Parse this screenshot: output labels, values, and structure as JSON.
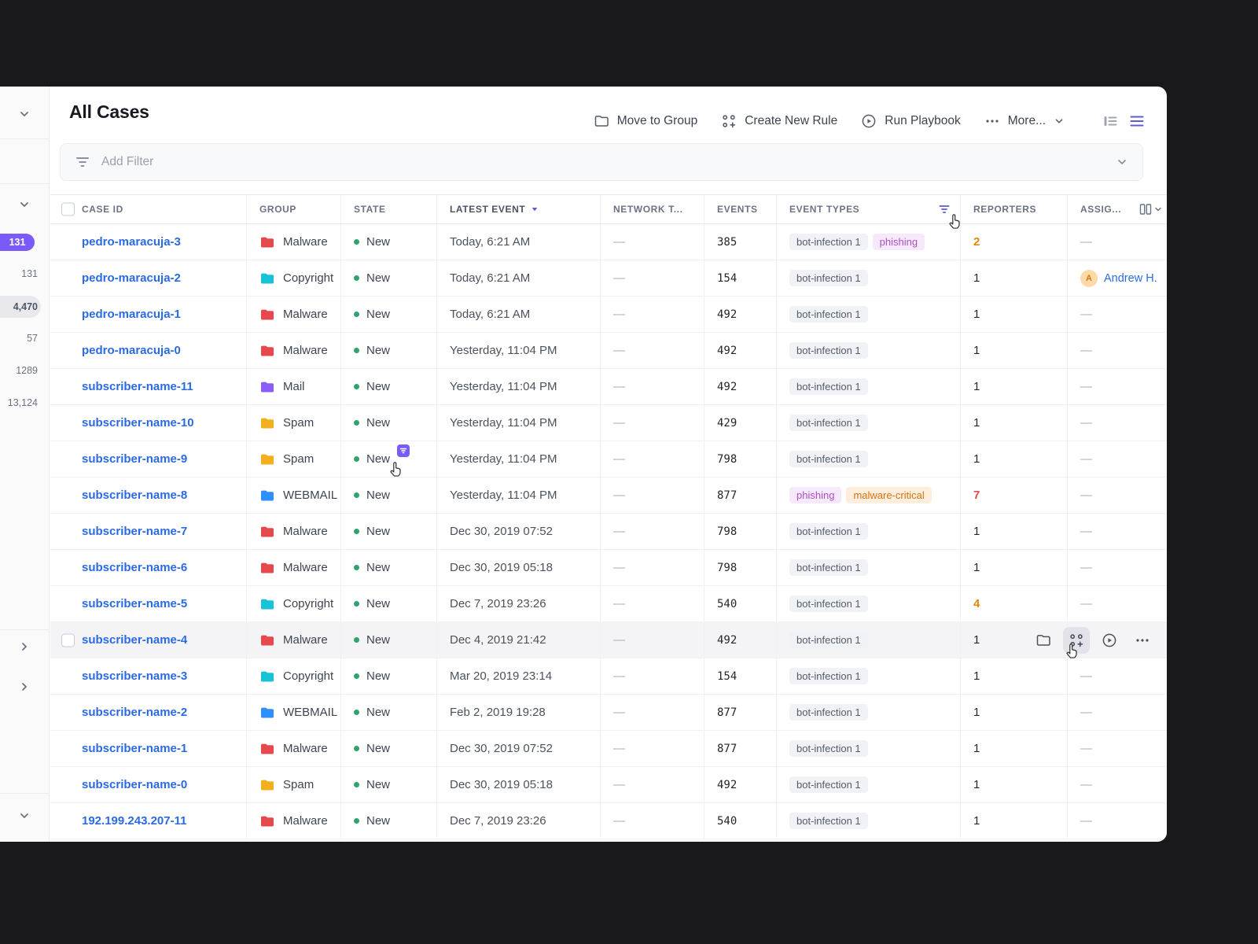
{
  "colors": {
    "background": "#19191b",
    "accent_purple": "#7a5af8",
    "indigo": "#5b5bd6",
    "link_blue": "#2a6be2",
    "state_green": "#2fa36b",
    "reporters_orange": "#e8860d",
    "reporters_red": "#e5484d",
    "group_colors": {
      "Malware": "#e5484d",
      "Copyright": "#18c3d8",
      "Mail": "#8b5cf6",
      "Spam": "#f2b01e",
      "WEBMAIL": "#2e90fa"
    }
  },
  "sidebar": {
    "counts": [
      {
        "label": "131",
        "style": "purple-pill"
      },
      {
        "label": "131",
        "style": "plain"
      },
      {
        "label": "4,470",
        "style": "selected"
      },
      {
        "label": "57",
        "style": "plain"
      },
      {
        "label": "1289",
        "style": "plain"
      },
      {
        "label": "13,124",
        "style": "plain"
      }
    ]
  },
  "header": {
    "title": "All Cases",
    "actions": {
      "move_to_group": "Move to Group",
      "create_new_rule": "Create New Rule",
      "run_playbook": "Run Playbook",
      "more": "More..."
    }
  },
  "filter_bar": {
    "placeholder": "Add Filter"
  },
  "table": {
    "columns": [
      "CASE ID",
      "GROUP",
      "STATE",
      "LATEST EVENT",
      "NETWORK T...",
      "EVENTS",
      "EVENT TYPES",
      "REPORTERS",
      "ASSIG..."
    ],
    "rows": [
      {
        "case_id": "pedro-maracuja-3",
        "group": "Malware",
        "state": "New",
        "latest_event": "Today, 6:21 AM",
        "network_type": "—",
        "events": "385",
        "event_types": [
          {
            "label": "bot-infection 1",
            "style": "default"
          },
          {
            "label": "phishing",
            "style": "purple"
          }
        ],
        "reporters": "2",
        "reporters_style": "orange",
        "assignee": "—",
        "hovered": false,
        "state_badge": false
      },
      {
        "case_id": "pedro-maracuja-2",
        "group": "Copyright",
        "state": "New",
        "latest_event": "Today, 6:21 AM",
        "network_type": "—",
        "events": "154",
        "event_types": [
          {
            "label": "bot-infection 1",
            "style": "default"
          }
        ],
        "reporters": "1",
        "reporters_style": "default",
        "assignee": "Andrew H.",
        "hovered": false,
        "state_badge": false
      },
      {
        "case_id": "pedro-maracuja-1",
        "group": "Malware",
        "state": "New",
        "latest_event": "Today, 6:21 AM",
        "network_type": "—",
        "events": "492",
        "event_types": [
          {
            "label": "bot-infection 1",
            "style": "default"
          }
        ],
        "reporters": "1",
        "reporters_style": "default",
        "assignee": "—",
        "hovered": false,
        "state_badge": false
      },
      {
        "case_id": "pedro-maracuja-0",
        "group": "Malware",
        "state": "New",
        "latest_event": "Yesterday, 11:04 PM",
        "network_type": "—",
        "events": "492",
        "event_types": [
          {
            "label": "bot-infection 1",
            "style": "default"
          }
        ],
        "reporters": "1",
        "reporters_style": "default",
        "assignee": "—",
        "hovered": false,
        "state_badge": false
      },
      {
        "case_id": "subscriber-name-11",
        "group": "Mail",
        "state": "New",
        "latest_event": "Yesterday, 11:04 PM",
        "network_type": "—",
        "events": "492",
        "event_types": [
          {
            "label": "bot-infection 1",
            "style": "default"
          }
        ],
        "reporters": "1",
        "reporters_style": "default",
        "assignee": "—",
        "hovered": false,
        "state_badge": false
      },
      {
        "case_id": "subscriber-name-10",
        "group": "Spam",
        "state": "New",
        "latest_event": "Yesterday, 11:04 PM",
        "network_type": "—",
        "events": "429",
        "event_types": [
          {
            "label": "bot-infection 1",
            "style": "default"
          }
        ],
        "reporters": "1",
        "reporters_style": "default",
        "assignee": "—",
        "hovered": false,
        "state_badge": false
      },
      {
        "case_id": "subscriber-name-9",
        "group": "Spam",
        "state": "New",
        "latest_event": "Yesterday, 11:04 PM",
        "network_type": "—",
        "events": "798",
        "event_types": [
          {
            "label": "bot-infection 1",
            "style": "default"
          }
        ],
        "reporters": "1",
        "reporters_style": "default",
        "assignee": "—",
        "hovered": false,
        "state_badge": true
      },
      {
        "case_id": "subscriber-name-8",
        "group": "WEBMAIL",
        "state": "New",
        "latest_event": "Yesterday, 11:04 PM",
        "network_type": "—",
        "events": "877",
        "event_types": [
          {
            "label": "phishing",
            "style": "purple"
          },
          {
            "label": "malware-critical",
            "style": "orange"
          }
        ],
        "reporters": "7",
        "reporters_style": "red",
        "assignee": "—",
        "hovered": false,
        "state_badge": false
      },
      {
        "case_id": "subscriber-name-7",
        "group": "Malware",
        "state": "New",
        "latest_event": "Dec 30, 2019 07:52",
        "network_type": "—",
        "events": "798",
        "event_types": [
          {
            "label": "bot-infection 1",
            "style": "default"
          }
        ],
        "reporters": "1",
        "reporters_style": "default",
        "assignee": "—",
        "hovered": false,
        "state_badge": false
      },
      {
        "case_id": "subscriber-name-6",
        "group": "Malware",
        "state": "New",
        "latest_event": "Dec 30, 2019 05:18",
        "network_type": "—",
        "events": "798",
        "event_types": [
          {
            "label": "bot-infection 1",
            "style": "default"
          }
        ],
        "reporters": "1",
        "reporters_style": "default",
        "assignee": "—",
        "hovered": false,
        "state_badge": false
      },
      {
        "case_id": "subscriber-name-5",
        "group": "Copyright",
        "state": "New",
        "latest_event": "Dec 7, 2019 23:26",
        "network_type": "—",
        "events": "540",
        "event_types": [
          {
            "label": "bot-infection 1",
            "style": "default"
          }
        ],
        "reporters": "4",
        "reporters_style": "orange",
        "assignee": "—",
        "hovered": false,
        "state_badge": false
      },
      {
        "case_id": "subscriber-name-4",
        "group": "Malware",
        "state": "New",
        "latest_event": "Dec 4, 2019 21:42",
        "network_type": "—",
        "events": "492",
        "event_types": [
          {
            "label": "bot-infection 1",
            "style": "default"
          }
        ],
        "reporters": "1",
        "reporters_style": "default",
        "assignee": "—",
        "hovered": true,
        "state_badge": false
      },
      {
        "case_id": "subscriber-name-3",
        "group": "Copyright",
        "state": "New",
        "latest_event": "Mar 20, 2019 23:14",
        "network_type": "—",
        "events": "154",
        "event_types": [
          {
            "label": "bot-infection 1",
            "style": "default"
          }
        ],
        "reporters": "1",
        "reporters_style": "default",
        "assignee": "—",
        "hovered": false,
        "state_badge": false
      },
      {
        "case_id": "subscriber-name-2",
        "group": "WEBMAIL",
        "state": "New",
        "latest_event": "Feb 2, 2019 19:28",
        "network_type": "—",
        "events": "877",
        "event_types": [
          {
            "label": "bot-infection 1",
            "style": "default"
          }
        ],
        "reporters": "1",
        "reporters_style": "default",
        "assignee": "—",
        "hovered": false,
        "state_badge": false
      },
      {
        "case_id": "subscriber-name-1",
        "group": "Malware",
        "state": "New",
        "latest_event": "Dec 30, 2019 07:52",
        "network_type": "—",
        "events": "877",
        "event_types": [
          {
            "label": "bot-infection 1",
            "style": "default"
          }
        ],
        "reporters": "1",
        "reporters_style": "default",
        "assignee": "—",
        "hovered": false,
        "state_badge": false
      },
      {
        "case_id": "subscriber-name-0",
        "group": "Spam",
        "state": "New",
        "latest_event": "Dec 30, 2019 05:18",
        "network_type": "—",
        "events": "492",
        "event_types": [
          {
            "label": "bot-infection 1",
            "style": "default"
          }
        ],
        "reporters": "1",
        "reporters_style": "default",
        "assignee": "—",
        "hovered": false,
        "state_badge": false
      },
      {
        "case_id": "192.199.243.207-11",
        "group": "Malware",
        "state": "New",
        "latest_event": "Dec 7, 2019 23:26",
        "network_type": "—",
        "events": "540",
        "event_types": [
          {
            "label": "bot-infection 1",
            "style": "default"
          }
        ],
        "reporters": "1",
        "reporters_style": "default",
        "assignee": "—",
        "hovered": false,
        "state_badge": false
      }
    ]
  },
  "icons": {
    "move_to_group": "folder-icon",
    "create_new_rule": "workflow-plus-icon",
    "run_playbook": "play-circle-icon",
    "more": "ellipsis-icon",
    "view_left": "list-detail-icon",
    "view_right": "hamburger-icon",
    "filter": "funnel-icon",
    "sort": "triangle-down-icon",
    "column_settings": "columns-icon",
    "cursor": "hand-pointer-icon"
  }
}
